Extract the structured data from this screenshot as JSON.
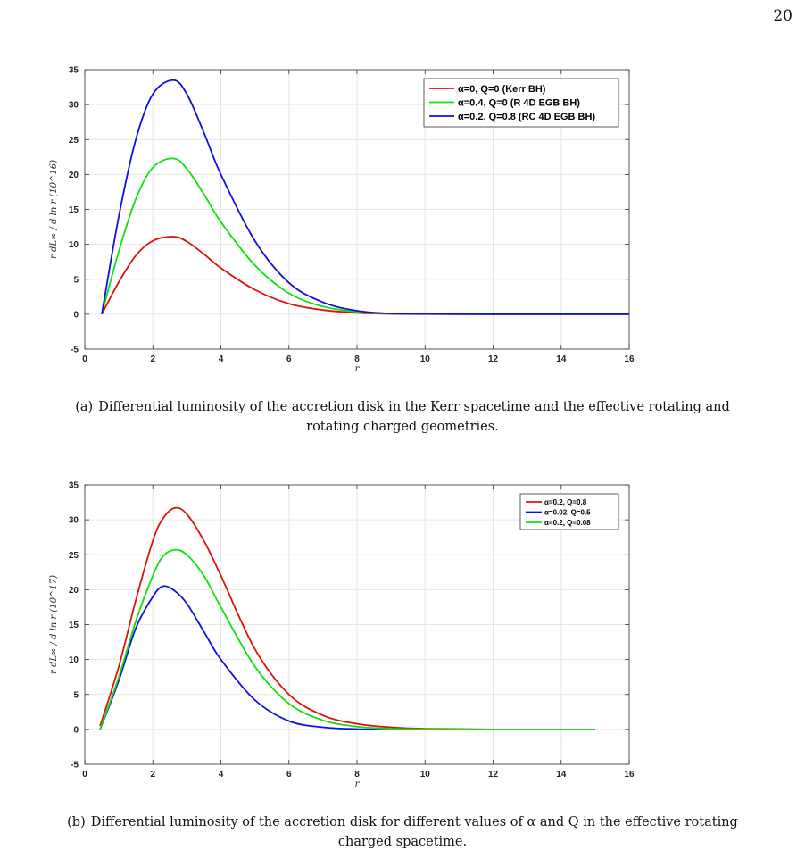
{
  "page_number": "20",
  "captions": [
    {
      "tag": "(a)",
      "text": "Differential luminosity of the accretion disk in the Kerr spacetime and the effective rotating and rotating charged geometries."
    },
    {
      "tag": "(b)",
      "text": "Differential luminosity of the accretion disk for different values of α and Q in the effective rotating charged spacetime."
    }
  ],
  "chart_data": [
    {
      "type": "line",
      "xlabel": "r",
      "ylabel": "r dL∞ / d ln r",
      "ylabel_unit": "(10^16)",
      "xlim": [
        0,
        16
      ],
      "ylim": [
        -5,
        35
      ],
      "xticks": [
        "0",
        "2",
        "4",
        "6",
        "8",
        "10",
        "12",
        "14",
        "16"
      ],
      "yticks": [
        "-5",
        "0",
        "5",
        "10",
        "15",
        "20",
        "25",
        "30",
        "35"
      ],
      "grid": true,
      "legend_position": "top-right",
      "x": [
        0.5,
        1.0,
        1.5,
        2.0,
        2.6,
        3.0,
        3.5,
        4.0,
        5.0,
        6.0,
        7.0,
        8.0,
        9.0,
        10.0,
        12.0,
        14.0,
        16.0
      ],
      "series": [
        {
          "name": "α=0, Q=0 (Kerr BH)",
          "color": "#e01010",
          "values": [
            0,
            4.6,
            8.4,
            10.5,
            11.1,
            10.4,
            8.6,
            6.6,
            3.5,
            1.5,
            0.6,
            0.2,
            0.05,
            0.02,
            0,
            0,
            0
          ]
        },
        {
          "name": "α=0.4, Q=0 (R 4D EGB BH)",
          "color": "#10e010",
          "values": [
            0,
            9.0,
            16.5,
            21.0,
            22.3,
            20.8,
            17.2,
            13.2,
            7.0,
            3.0,
            1.1,
            0.35,
            0.08,
            0.03,
            0,
            0,
            0
          ]
        },
        {
          "name": "α=0.2, Q=0.8 (RC 4D EGB BH)",
          "color": "#1010e0",
          "values": [
            0,
            14.0,
            25.0,
            31.5,
            33.5,
            31.5,
            26.0,
            20.0,
            10.5,
            4.5,
            1.7,
            0.5,
            0.1,
            0.05,
            0,
            0,
            0
          ]
        }
      ]
    },
    {
      "type": "line",
      "xlabel": "r",
      "ylabel": "r dL∞ / d ln r",
      "ylabel_unit": "(10^17)",
      "xlim": [
        0,
        16
      ],
      "ylim": [
        -5,
        35
      ],
      "xticks": [
        "0",
        "2",
        "4",
        "6",
        "8",
        "10",
        "12",
        "14",
        "16"
      ],
      "yticks": [
        "-5",
        "0",
        "5",
        "10",
        "15",
        "20",
        "25",
        "30",
        "35"
      ],
      "grid": true,
      "legend_position": "top-right",
      "x": [
        0.45,
        1.0,
        1.5,
        2.0,
        2.3,
        2.65,
        3.0,
        3.5,
        4.0,
        5.0,
        6.0,
        7.0,
        8.0,
        9.0,
        10.0,
        12.0,
        15.0
      ],
      "series": [
        {
          "name": "α=0.2, Q=0.8",
          "color": "#e01010",
          "values": [
            0.5,
            9.0,
            18.5,
            27.0,
            30.2,
            31.7,
            30.8,
            27.0,
            22.0,
            11.5,
            5.0,
            2.0,
            0.8,
            0.3,
            0.1,
            0,
            0
          ]
        },
        {
          "name": "α=0.02, Q=0.5",
          "color": "#1010e0",
          "values": [
            0,
            7.0,
            14.5,
            19.0,
            20.5,
            19.8,
            18.0,
            14.0,
            10.0,
            4.2,
            1.2,
            0.3,
            0.05,
            0,
            0,
            0,
            0
          ]
        },
        {
          "name": "α=0.2, Q=0.08",
          "color": "#10e010",
          "values": [
            0,
            7.5,
            15.5,
            22.0,
            24.8,
            25.7,
            25.0,
            22.0,
            17.5,
            9.0,
            3.7,
            1.3,
            0.4,
            0.1,
            0.03,
            0,
            0
          ]
        }
      ]
    }
  ]
}
